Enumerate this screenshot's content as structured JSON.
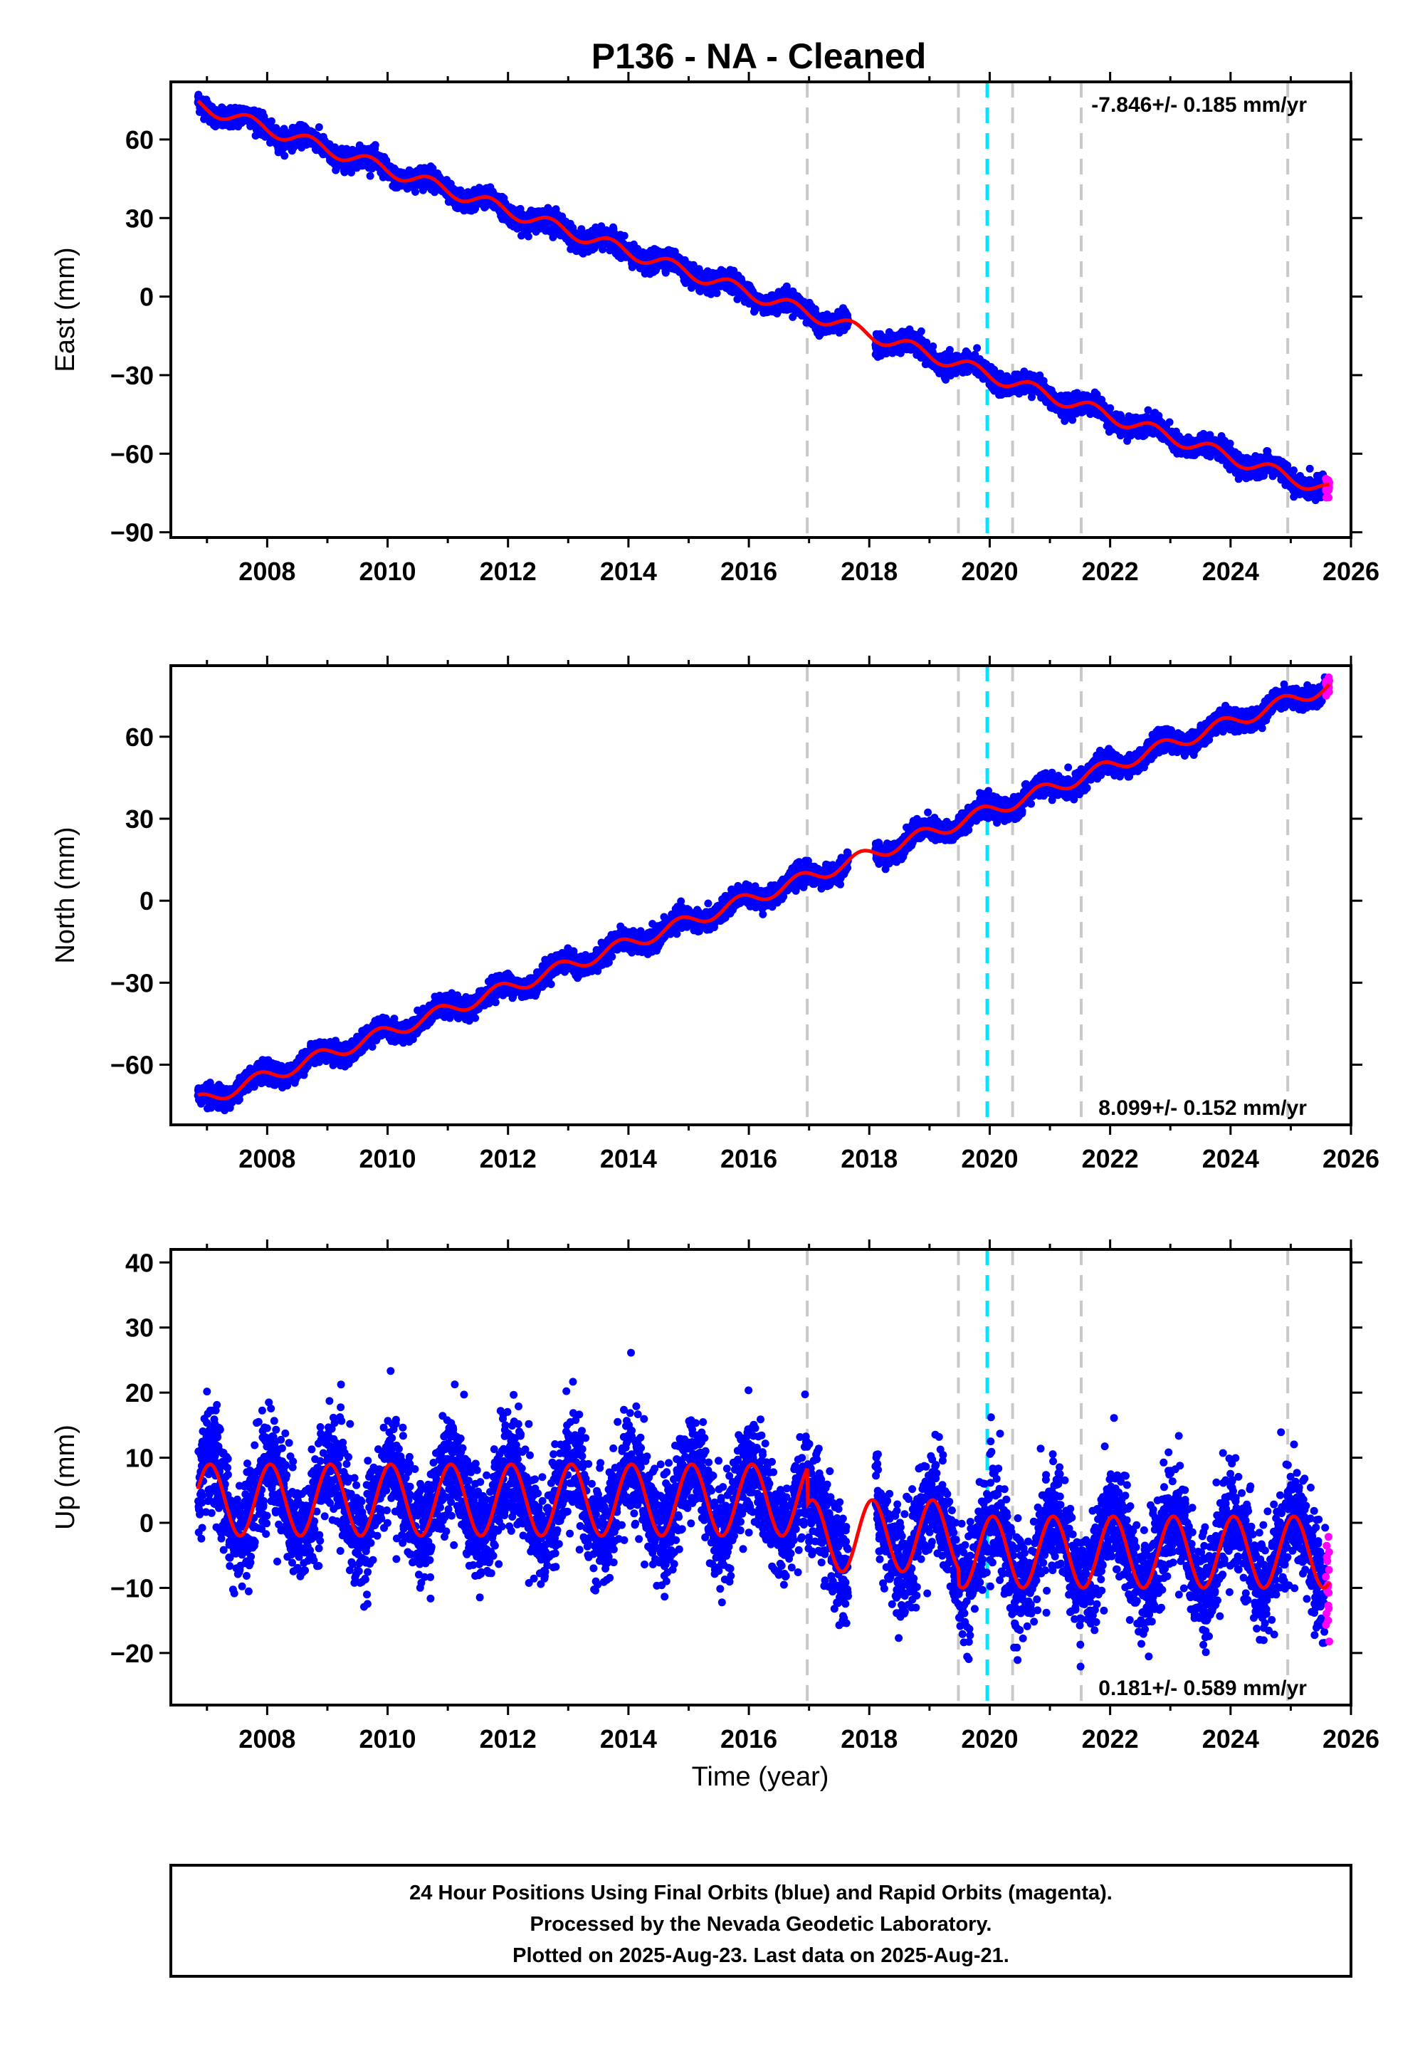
{
  "title": "P136  - NA - Cleaned",
  "xlabel": "Time (year)",
  "footer": {
    "line1": "24 Hour Positions Using Final Orbits (blue) and Rapid Orbits (magenta).",
    "line2": "Processed by the Nevada Geodetic Laboratory.",
    "line3": "Plotted on 2025-Aug-23. Last data on 2025-Aug-21."
  },
  "colors": {
    "final_orbits": "#0000ff",
    "rapid_orbits": "#ff00ff",
    "model_fit": "#ff0000",
    "offset_lines": "#c8c8c8",
    "highlight_offset": "#00e5ff",
    "frame": "#000000"
  },
  "chart_data": [
    {
      "type": "scatter",
      "panel": "east",
      "ylabel": "East (mm)",
      "rate_label": "-7.846+/- 0.185 mm/yr",
      "rate_position": "top-right",
      "xlim": [
        2006.4,
        2026.0
      ],
      "ylim": [
        -92,
        82
      ],
      "xticks": [
        2008,
        2010,
        2012,
        2014,
        2016,
        2018,
        2020,
        2022,
        2024,
        2026
      ],
      "yticks": [
        -90,
        -60,
        -30,
        0,
        30,
        60
      ],
      "trend": {
        "t0": 2016.0,
        "value_at_t0": 1.5,
        "rate_mm_per_yr": -7.846
      },
      "seasonal": {
        "amplitude": 2.5,
        "phase_year": 0.45
      },
      "noise": 1.8,
      "gap": [
        2017.65,
        2018.1
      ],
      "data_range": [
        2006.85,
        2025.64
      ],
      "rapid_range": [
        2025.58,
        2025.64
      ]
    },
    {
      "type": "scatter",
      "panel": "north",
      "ylabel": "North (mm)",
      "rate_label": "8.099+/- 0.152 mm/yr",
      "rate_position": "bottom-right",
      "xlim": [
        2006.4,
        2026.0
      ],
      "ylim": [
        -82,
        86
      ],
      "xticks": [
        2008,
        2010,
        2012,
        2014,
        2016,
        2018,
        2020,
        2022,
        2024,
        2026
      ],
      "yticks": [
        -60,
        -30,
        0,
        30,
        60
      ],
      "trend": {
        "t0": 2016.0,
        "value_at_t0": 0.5,
        "rate_mm_per_yr": 8.099
      },
      "seasonal": {
        "amplitude": 2.5,
        "phase_year": 0.6
      },
      "noise": 1.8,
      "gap": [
        2017.65,
        2018.1
      ],
      "data_range": [
        2006.85,
        2025.64
      ],
      "rapid_range": [
        2025.58,
        2025.64
      ]
    },
    {
      "type": "scatter",
      "panel": "up",
      "ylabel": "Up (mm)",
      "rate_label": "0.181+/- 0.589 mm/yr",
      "rate_position": "bottom-right",
      "xlim": [
        2006.4,
        2026.0
      ],
      "ylim": [
        -28,
        42
      ],
      "xticks": [
        2008,
        2010,
        2012,
        2014,
        2016,
        2018,
        2020,
        2022,
        2024,
        2026
      ],
      "yticks": [
        -20,
        -10,
        0,
        10,
        20,
        30,
        40
      ],
      "segments": [
        {
          "from": 2006.85,
          "to": 2016.97,
          "offset": 3.5
        },
        {
          "from": 2016.97,
          "to": 2019.48,
          "offset": -2.0
        },
        {
          "from": 2019.48,
          "to": 2025.64,
          "offset": -4.5
        }
      ],
      "seasonal": {
        "amplitude": 5.5,
        "phase_year": 0.8
      },
      "noise": 4.0,
      "gap": [
        2017.65,
        2018.1
      ],
      "data_range": [
        2006.85,
        2025.64
      ],
      "rapid_range": [
        2025.58,
        2025.64
      ]
    }
  ],
  "offset_lines": [
    {
      "year": 2016.97,
      "highlight": false
    },
    {
      "year": 2019.48,
      "highlight": false
    },
    {
      "year": 2019.96,
      "highlight": true
    },
    {
      "year": 2020.38,
      "highlight": false
    },
    {
      "year": 2021.52,
      "highlight": false
    },
    {
      "year": 2024.95,
      "highlight": false
    }
  ]
}
